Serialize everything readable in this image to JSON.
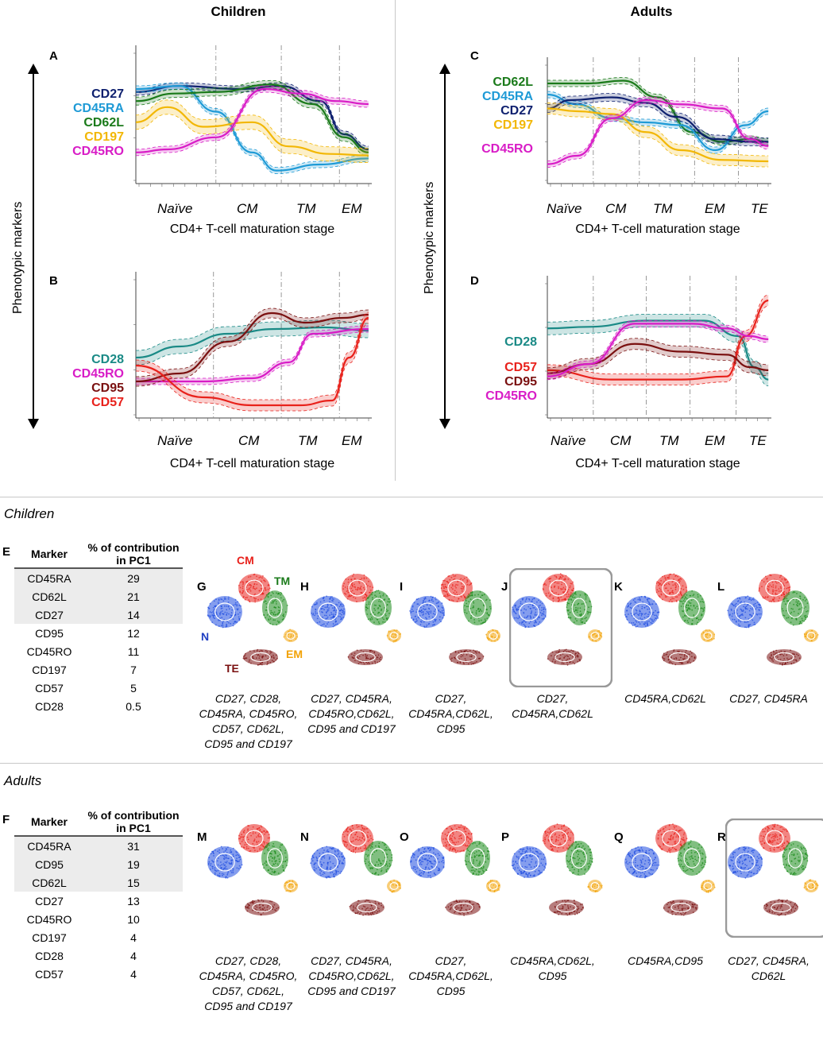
{
  "headers": {
    "children": "Children",
    "adults": "Adults"
  },
  "y_axis_label": "Phenotypic markers",
  "x_axis_label": "CD4+ T-cell maturation stage",
  "sections": {
    "children": "Children",
    "adults": "Adults"
  },
  "panels": {
    "A": {
      "label": "A",
      "stages": [
        "Naïve",
        "CM",
        "TM",
        "EM"
      ],
      "markers": [
        {
          "name": "CD27",
          "color": "#0d1f6e"
        },
        {
          "name": "CD45RA",
          "color": "#1e9ad6"
        },
        {
          "name": "CD62L",
          "color": "#1a7a1a"
        },
        {
          "name": "CD197",
          "color": "#f2b705"
        },
        {
          "name": "CD45RO",
          "color": "#d81cc6"
        }
      ]
    },
    "B": {
      "label": "B",
      "stages": [
        "Naïve",
        "CM",
        "TM",
        "EM"
      ],
      "markers": [
        {
          "name": "CD28",
          "color": "#1a8a86"
        },
        {
          "name": "CD45RO",
          "color": "#d81cc6"
        },
        {
          "name": "CD95",
          "color": "#7a1010"
        },
        {
          "name": "CD57",
          "color": "#e8211b"
        }
      ]
    },
    "C": {
      "label": "C",
      "stages": [
        "Naïve",
        "CM",
        "TM",
        "EM",
        "TE"
      ],
      "markers": [
        {
          "name": "CD62L",
          "color": "#1a7a1a"
        },
        {
          "name": "CD45RA",
          "color": "#1e9ad6"
        },
        {
          "name": "CD27",
          "color": "#0d1f6e"
        },
        {
          "name": "CD197",
          "color": "#f2b705"
        },
        {
          "name": "CD45RO",
          "color": "#d81cc6"
        }
      ]
    },
    "D": {
      "label": "D",
      "stages": [
        "Naïve",
        "CM",
        "TM",
        "EM",
        "TE"
      ],
      "markers": [
        {
          "name": "CD28",
          "color": "#1a8a86"
        },
        {
          "name": "CD57",
          "color": "#e8211b"
        },
        {
          "name": "CD95",
          "color": "#7a1010"
        },
        {
          "name": "CD45RO",
          "color": "#d81cc6"
        }
      ]
    }
  },
  "table_E": {
    "label": "E",
    "col1": "Marker",
    "col2": "% of contribution in PC1",
    "rows": [
      [
        "CD45RA",
        "29"
      ],
      [
        "CD62L",
        "21"
      ],
      [
        "CD27",
        "14"
      ],
      [
        "CD95",
        "12"
      ],
      [
        "CD45RO",
        "11"
      ],
      [
        "CD197",
        "7"
      ],
      [
        "CD57",
        "5"
      ],
      [
        "CD28",
        "0.5"
      ]
    ]
  },
  "table_F": {
    "label": "F",
    "col1": "Marker",
    "col2": "% of contribution in PC1",
    "rows": [
      [
        "CD45RA",
        "31"
      ],
      [
        "CD95",
        "19"
      ],
      [
        "CD62L",
        "15"
      ],
      [
        "CD27",
        "13"
      ],
      [
        "CD45RO",
        "10"
      ],
      [
        "CD197",
        "4"
      ],
      [
        "CD28",
        "4"
      ],
      [
        "CD57",
        "4"
      ]
    ]
  },
  "clusters": {
    "CM": "CM",
    "TM": "TM",
    "N": "N",
    "EM": "EM",
    "TE": "TE"
  },
  "umaps_children": [
    {
      "label": "G",
      "caption": [
        "CD27, CD28,",
        "CD45RA, CD45RO,",
        "CD57, CD62L,",
        "CD95 and CD197"
      ]
    },
    {
      "label": "H",
      "caption": [
        "CD27, CD45RA,",
        "CD45RO,CD62L,",
        "CD95 and CD197"
      ]
    },
    {
      "label": "I",
      "caption": [
        "CD27,",
        "CD45RA,CD62L,",
        "CD95"
      ]
    },
    {
      "label": "J",
      "caption": [
        "CD27,",
        "CD45RA,CD62L"
      ]
    },
    {
      "label": "K",
      "caption": [
        "CD45RA,CD62L"
      ]
    },
    {
      "label": "L",
      "caption": [
        "CD27, CD45RA"
      ]
    }
  ],
  "umaps_adults": [
    {
      "label": "M",
      "caption": [
        "CD27, CD28,",
        "CD45RA, CD45RO,",
        "CD57, CD62L,",
        "CD95 and CD197"
      ]
    },
    {
      "label": "N",
      "caption": [
        "CD27, CD45RA,",
        "CD45RO,CD62L,",
        "CD95 and CD197"
      ]
    },
    {
      "label": "O",
      "caption": [
        "CD27,",
        "CD45RA,CD62L,",
        "CD95"
      ]
    },
    {
      "label": "P",
      "caption": [
        "CD45RA,CD62L,",
        "CD95"
      ]
    },
    {
      "label": "Q",
      "caption": [
        "CD45RA,CD95"
      ]
    },
    {
      "label": "R",
      "caption": [
        "CD27, CD45RA,",
        "CD62L"
      ]
    }
  ]
}
